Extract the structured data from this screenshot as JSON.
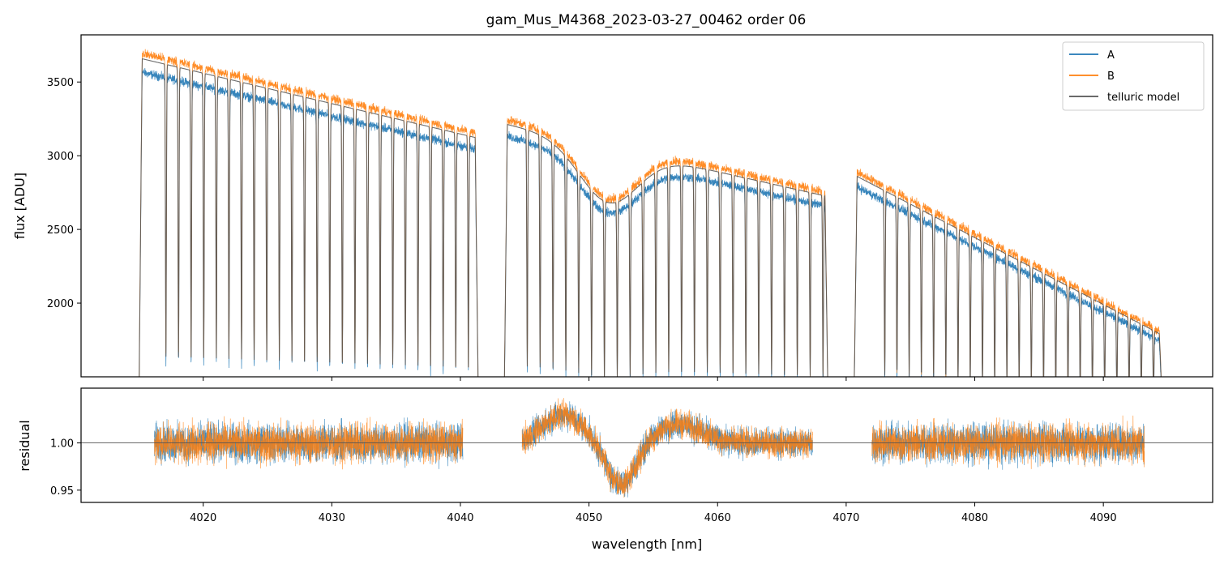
{
  "figure": {
    "title": "gam_Mus_M4368_2023-03-27_00462  order 06"
  },
  "chart_data": [
    {
      "type": "line",
      "panel": "flux",
      "title": "gam_Mus_M4368_2023-03-27_00462  order 06",
      "xlabel": "",
      "ylabel": "flux [ADU]",
      "xlim": [
        4010.5,
        4098.5
      ],
      "ylim": [
        1500,
        3820
      ],
      "yticks": [
        2000,
        2500,
        3000,
        3500
      ],
      "ytick_labels": [
        "2000",
        "2500",
        "3000",
        "3500"
      ],
      "xticks": [
        4020,
        4030,
        4040,
        4050,
        4060,
        4070,
        4080,
        4090
      ],
      "grid": false,
      "legend_position": "top-right",
      "legend": [
        "A",
        "B",
        "telluric model"
      ],
      "segments": [
        {
          "start": 4015.0,
          "end": 4041.4,
          "continuum_start": 3700,
          "continuum_end": 3150,
          "first_line": 4017.1,
          "line_spacing": 0.98
        },
        {
          "start": 4043.4,
          "end": 4068.6,
          "continuum_start": 3250,
          "continuum_end": 2750,
          "dip_center": 4051.5,
          "dip_depth": 380,
          "first_line": 4045.2,
          "line_spacing": 1.0
        },
        {
          "start": 4070.6,
          "end": 4094.6,
          "continuum_start": 2900,
          "continuum_end": 1800,
          "first_line": 4073.0,
          "line_spacing": 0.95
        }
      ],
      "series": [
        {
          "name": "A",
          "color": "#1f77b4",
          "offset_factor": 0.965
        },
        {
          "name": "B",
          "color": "#ff7f0e",
          "offset_factor": 1.0
        },
        {
          "name": "telluric model",
          "color": "#555555",
          "offset_factor": 0.99
        }
      ]
    },
    {
      "type": "line",
      "panel": "residual",
      "xlabel": "wavelength [nm]",
      "ylabel": "residual",
      "xlim": [
        4010.5,
        4098.5
      ],
      "ylim": [
        0.937,
        1.058
      ],
      "yticks": [
        0.95,
        1.0
      ],
      "ytick_labels": [
        "0.95",
        "1.00"
      ],
      "xticks": [
        4020,
        4030,
        4040,
        4050,
        4060,
        4070,
        4080,
        4090
      ],
      "xtick_labels": [
        "4020",
        "4030",
        "4040",
        "4050",
        "4060",
        "4070",
        "4080",
        "4090"
      ],
      "reference_line": 1.0,
      "segments": [
        {
          "start": 4016.2,
          "end": 4040.2,
          "noise": 0.03
        },
        {
          "start": 4044.8,
          "end": 4067.4,
          "noise": 0.022,
          "wave": true
        },
        {
          "start": 4072.0,
          "end": 4093.2,
          "noise": 0.03
        }
      ],
      "series": [
        {
          "name": "A",
          "color": "#1f77b4"
        },
        {
          "name": "B",
          "color": "#ff7f0e"
        }
      ]
    }
  ]
}
